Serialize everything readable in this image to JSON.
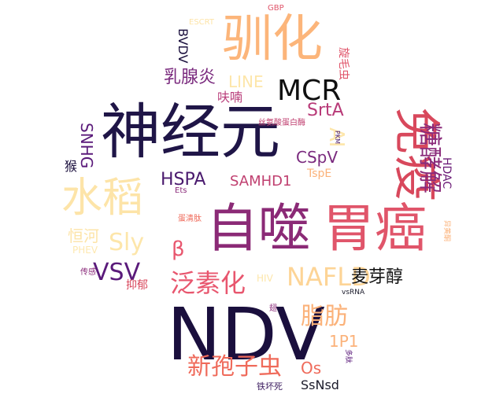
{
  "words": [
    {
      "text": "自噬",
      "color": "#8b2a76"
    },
    {
      "text": "胃癌",
      "color": "#e0556a"
    },
    {
      "text": "神经元",
      "color": "#1f1547"
    },
    {
      "text": "NDV",
      "color": "#1a0f3d"
    },
    {
      "text": "驯化",
      "color": "#fcb57a"
    },
    {
      "text": "免疫",
      "color": "#d8485c"
    },
    {
      "text": "水稻",
      "color": "#fde4a8"
    },
    {
      "text": "MCR",
      "color": "#101010"
    },
    {
      "text": "NAFLD",
      "color": "#fdd496"
    },
    {
      "text": "泛素化",
      "color": "#e8566e"
    },
    {
      "text": "糖酵解",
      "color": "#8a2a7a"
    },
    {
      "text": "新孢子虫",
      "color": "#ef6a5a"
    },
    {
      "text": "脂肪",
      "color": "#fbb27a"
    },
    {
      "text": "VSV",
      "color": "#5a1a7a"
    },
    {
      "text": "Sly",
      "color": "#fde6aa"
    },
    {
      "text": "乳腺炎",
      "color": "#7a2a7e"
    },
    {
      "text": "HSPA",
      "color": "#4a1a6e"
    },
    {
      "text": "麦芽醇",
      "color": "#101010"
    },
    {
      "text": "SrtA",
      "color": "#b83a78"
    },
    {
      "text": "CSpV",
      "color": "#7a2a7e"
    },
    {
      "text": "SAMHD1",
      "color": "#c04070"
    },
    {
      "text": "SNHG",
      "color": "#5a1a7a"
    },
    {
      "text": "恒河",
      "color": "#fde4a8"
    },
    {
      "text": "LINE",
      "color": "#fde6aa"
    },
    {
      "text": "1P1",
      "color": "#fbb27a"
    },
    {
      "text": "AI",
      "color": "#fde6aa"
    },
    {
      "text": "β",
      "color": "#e8566e"
    },
    {
      "text": "HDAC",
      "color": "#6a1a76"
    },
    {
      "text": "Os",
      "color": "#ef6a5a"
    },
    {
      "text": "SsNsd",
      "color": "#1a1a2a"
    },
    {
      "text": "BVDV",
      "color": "#1a0f3d"
    },
    {
      "text": "旋毛虫",
      "color": "#e0556a"
    },
    {
      "text": "呋喃",
      "color": "#b83a78"
    },
    {
      "text": "TspE",
      "color": "#fbb27a"
    },
    {
      "text": "抑郁",
      "color": "#d8485c"
    },
    {
      "text": "HIV",
      "color": "#fde6aa"
    },
    {
      "text": "猴",
      "color": "#1a0f3d"
    },
    {
      "text": "PHEV",
      "color": "#fde8b0"
    },
    {
      "text": "ESCRT",
      "color": "#fde4a8"
    },
    {
      "text": "GBP",
      "color": "#e0556a"
    },
    {
      "text": "丝氨酸蛋白酶",
      "color": "#c04070"
    },
    {
      "text": "蛋清肽",
      "color": "#ef6a5a"
    },
    {
      "text": "Ets",
      "color": "#8a2a7a"
    },
    {
      "text": "PKM",
      "color": "#4a1a6e"
    },
    {
      "text": "vsRNA",
      "color": "#1a1a2a"
    },
    {
      "text": "传感",
      "color": "#8a2a7a"
    },
    {
      "text": "翅",
      "color": "#8a2a7a"
    },
    {
      "text": "多肽",
      "color": "#5a1a7a"
    },
    {
      "text": "铁坏死",
      "color": "#3a1a5e"
    },
    {
      "text": "异黄酮",
      "color": "#fbb27a"
    }
  ]
}
